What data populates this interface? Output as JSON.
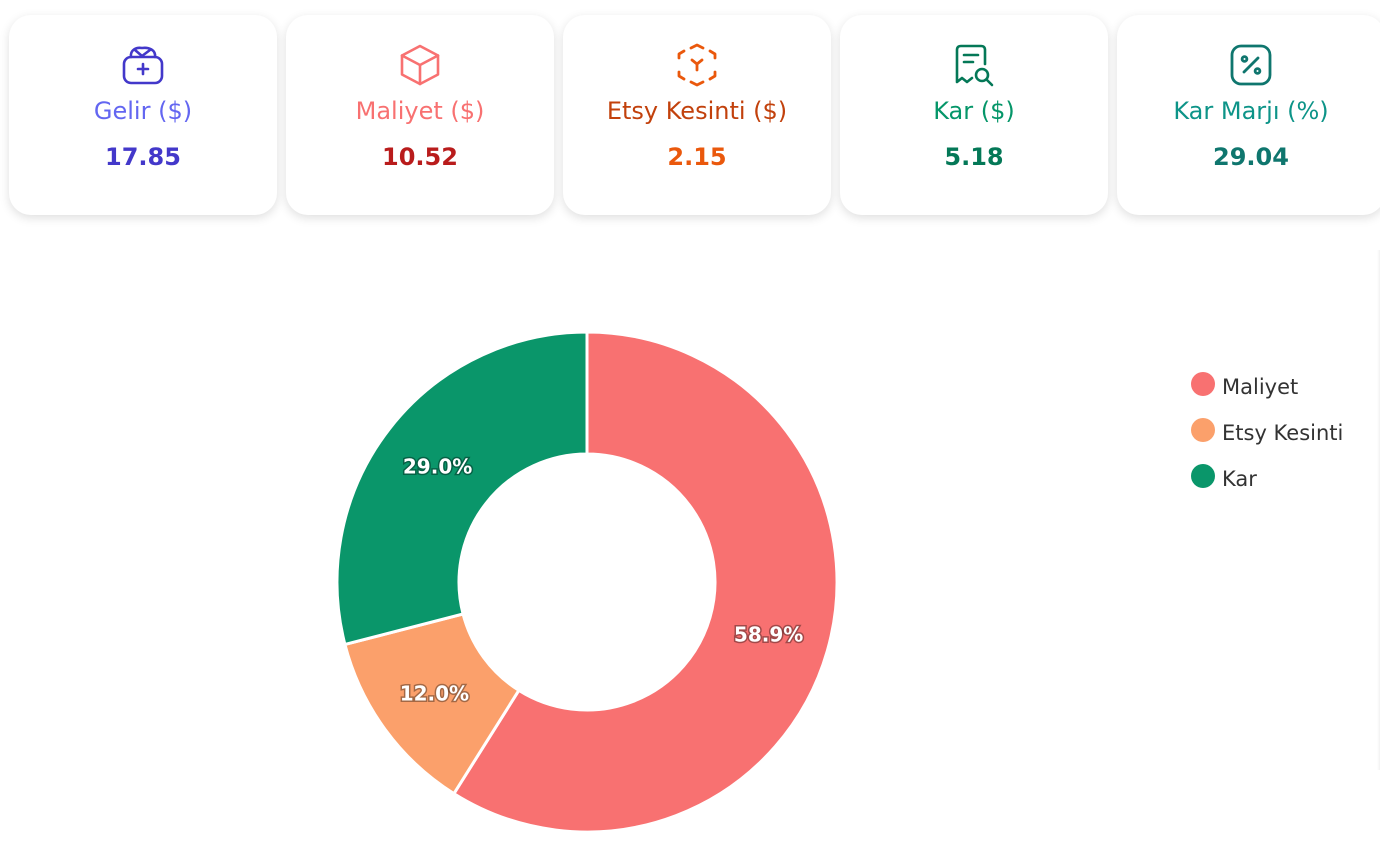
{
  "cards": [
    {
      "key": "gelir",
      "label": "Gelir ($)",
      "value": "17.85",
      "icon": "money-bag-icon",
      "label_color": "#6366f1",
      "value_color": "#4338ca",
      "icon_color": "#4338ca"
    },
    {
      "key": "maliyet",
      "label": "Maliyet ($)",
      "value": "10.52",
      "icon": "box-icon",
      "label_color": "#f87171",
      "value_color": "#b91c1c",
      "icon_color": "#f87171"
    },
    {
      "key": "etsy",
      "label": "Etsy Kesinti ($)",
      "value": "2.15",
      "icon": "cube-scan-icon",
      "label_color": "#c2410c",
      "value_color": "#ea580c",
      "icon_color": "#ea580c"
    },
    {
      "key": "kar",
      "label": "Kar ($)",
      "value": "5.18",
      "icon": "receipt-search-icon",
      "label_color": "#059669",
      "value_color": "#047857",
      "icon_color": "#047857"
    },
    {
      "key": "marj",
      "label": "Kar Marjı (%)",
      "value": "29.04",
      "icon": "percent-badge-icon",
      "label_color": "#0d9488",
      "value_color": "#0f766e",
      "icon_color": "#0f766e"
    }
  ],
  "chart_data": {
    "type": "pie",
    "variant": "doughnut",
    "categories": [
      "Maliyet",
      "Etsy Kesinti",
      "Kar"
    ],
    "values": [
      10.52,
      2.15,
      5.18
    ],
    "percent_labels": [
      "58.9%",
      "12.0%",
      "29.0%"
    ],
    "colors": [
      "#f87171",
      "#fba06b",
      "#0a966a"
    ],
    "legend_position": "right"
  }
}
